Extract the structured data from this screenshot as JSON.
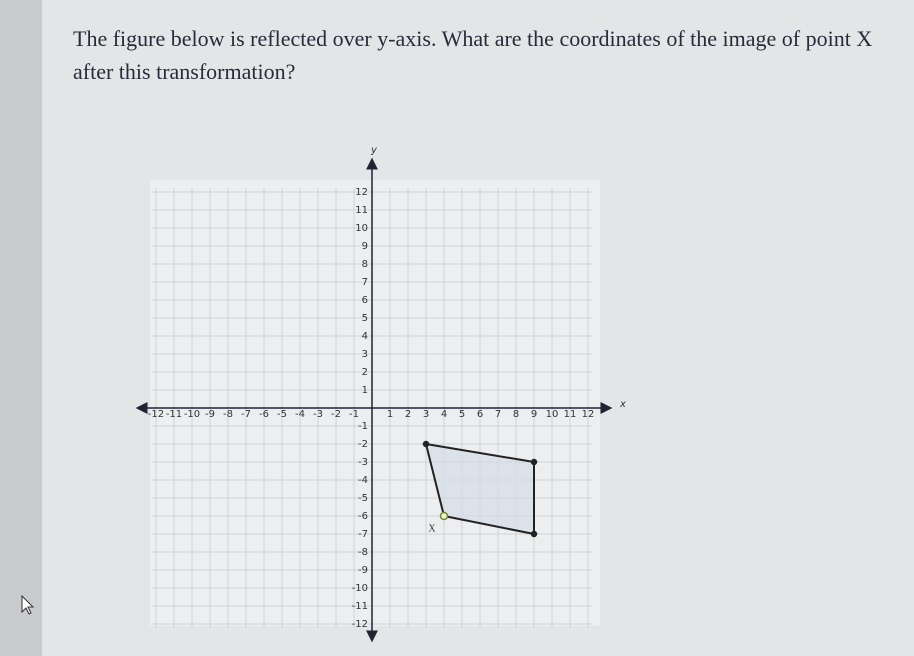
{
  "question": "The figure below is reflected over y-axis. What are the coordinates of the image of point X after this transformation?",
  "graph": {
    "x_label": "x",
    "y_label": "y",
    "xlim": [
      -12,
      12
    ],
    "ylim": [
      -12,
      12
    ],
    "xticks": [
      -12,
      -11,
      -10,
      -9,
      -8,
      -7,
      -6,
      -5,
      -4,
      -3,
      -2,
      -1,
      1,
      2,
      3,
      4,
      5,
      6,
      7,
      8,
      9,
      10,
      11,
      12
    ],
    "yticks": [
      12,
      11,
      10,
      9,
      8,
      7,
      6,
      5,
      4,
      3,
      2,
      1,
      -1,
      -2,
      -3,
      -4,
      -5,
      -6,
      -7,
      -8,
      -9,
      -10,
      -11,
      -12
    ],
    "points": [
      {
        "x": 3,
        "y": -2
      },
      {
        "x": 9,
        "y": -3
      },
      {
        "x": 9,
        "y": -7
      },
      {
        "x": 4,
        "y": -6,
        "label": "X"
      }
    ]
  }
}
